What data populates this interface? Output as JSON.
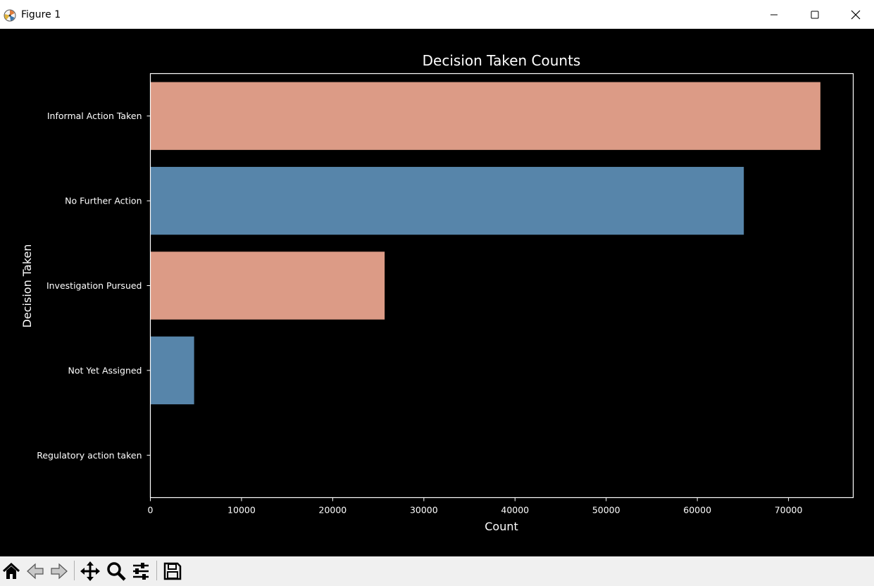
{
  "window": {
    "title": "Figure 1",
    "controls": [
      "minimize-icon",
      "maximize-icon",
      "close-icon"
    ]
  },
  "toolbar": {
    "tools": [
      "home-icon",
      "back-arrow-icon",
      "forward-arrow-icon",
      "pan-icon",
      "zoom-icon",
      "configure-subplots-icon",
      "save-icon"
    ]
  },
  "chart_data": {
    "type": "bar",
    "orientation": "horizontal",
    "title": "Decision Taken Counts",
    "xlabel": "Count",
    "ylabel": "Decision Taken",
    "categories": [
      "Informal Action Taken",
      "No Further Action",
      "Investigation Pursued",
      "Not Yet Assigned",
      "Regulatory action taken"
    ],
    "values": [
      73500,
      65100,
      25700,
      4800,
      30
    ],
    "colors": [
      "#dc9b86",
      "#5785aa",
      "#dc9b86",
      "#5785aa",
      "#dc9b86"
    ],
    "xlim": [
      0,
      77100
    ],
    "xticks": [
      0,
      10000,
      20000,
      30000,
      40000,
      50000,
      60000,
      70000
    ],
    "grid": false,
    "background": "#000000",
    "foreground": "#ffffff"
  }
}
